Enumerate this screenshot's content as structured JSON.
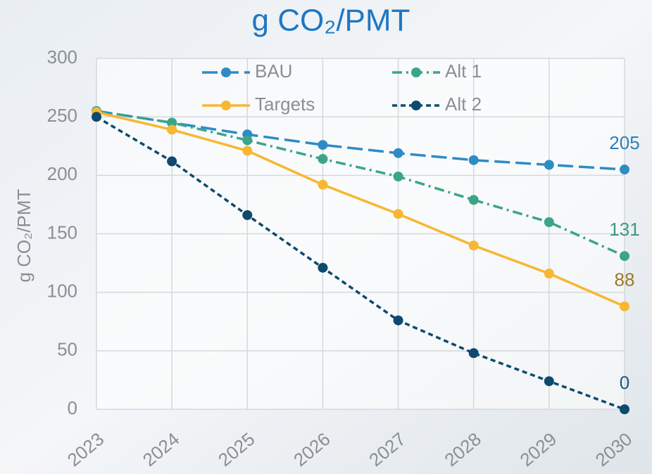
{
  "chart_data": {
    "type": "line",
    "title": "g CO₂/PMT",
    "y_label": "g CO₂/PMT",
    "categories": [
      "2023",
      "2024",
      "2025",
      "2026",
      "2027",
      "2028",
      "2029",
      "2030"
    ],
    "series": [
      {
        "name": "BAU",
        "color": "#2e8bc6",
        "dash": "long",
        "label_color": "#2e7fb8",
        "values": [
          255,
          245,
          235,
          226,
          219,
          213,
          209,
          205
        ]
      },
      {
        "name": "Alt 1",
        "color": "#3aa58a",
        "dash": "dashdot",
        "label_color": "#3a9a80",
        "values": [
          255,
          245,
          230,
          214,
          199,
          179,
          160,
          131
        ]
      },
      {
        "name": "Targets",
        "color": "#f7b733",
        "dash": "solid",
        "label_color": "#9a7a2a",
        "values": [
          254,
          239,
          221,
          192,
          167,
          140,
          116,
          88
        ]
      },
      {
        "name": "Alt 2",
        "color": "#0d4a6e",
        "dash": "short",
        "label_color": "#1d5a80",
        "values": [
          250,
          212,
          166,
          121,
          76,
          48,
          24,
          0
        ]
      }
    ],
    "ylim": [
      0,
      300
    ],
    "yticks": [
      0,
      50,
      100,
      150,
      200,
      250,
      300
    ],
    "grid": true,
    "data_labels": "last",
    "legend": "top"
  }
}
